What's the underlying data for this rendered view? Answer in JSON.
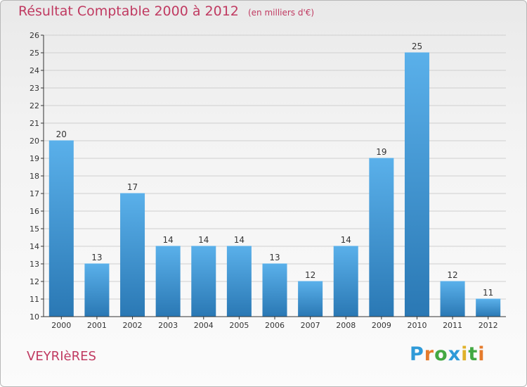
{
  "title": "Résultat Comptable 2000 à 2012",
  "subtitle": "(en milliers d'€)",
  "commune": "VEYRIèRES",
  "logo": {
    "text": "Proxiti",
    "letters": [
      {
        "ch": "P",
        "color": "#2f9ad8"
      },
      {
        "ch": "r",
        "color": "#e57b2c"
      },
      {
        "ch": "o",
        "color": "#43a843"
      },
      {
        "ch": "x",
        "color": "#2f9ad8"
      },
      {
        "ch": "i",
        "color": "#e0b22a"
      },
      {
        "ch": "t",
        "color": "#43a843"
      },
      {
        "ch": "i",
        "color": "#e57b2c"
      }
    ]
  },
  "colors": {
    "bar_top": "#5ab0ea",
    "bar_bottom": "#2a78b4",
    "axis": "#333333",
    "grid": "#cfcfcf",
    "text": "#333333",
    "accent": "#c03a61"
  },
  "chart_data": {
    "type": "bar",
    "categories": [
      "2000",
      "2001",
      "2002",
      "2003",
      "2004",
      "2005",
      "2006",
      "2007",
      "2008",
      "2009",
      "2010",
      "2011",
      "2012"
    ],
    "values": [
      20,
      13,
      17,
      14,
      14,
      14,
      13,
      12,
      14,
      19,
      25,
      12,
      11
    ],
    "data_labels": [
      "20",
      "13",
      "17",
      "14",
      "14",
      "14",
      "13",
      "12",
      "14",
      "19",
      "25",
      "12",
      "11"
    ],
    "ylim": [
      10,
      26
    ],
    "yticks": [
      "10",
      "11",
      "12",
      "13",
      "14",
      "15",
      "16",
      "17",
      "18",
      "19",
      "20",
      "21",
      "22",
      "23",
      "24",
      "25",
      "26"
    ],
    "grid": true,
    "xlabel": "",
    "ylabel": ""
  }
}
